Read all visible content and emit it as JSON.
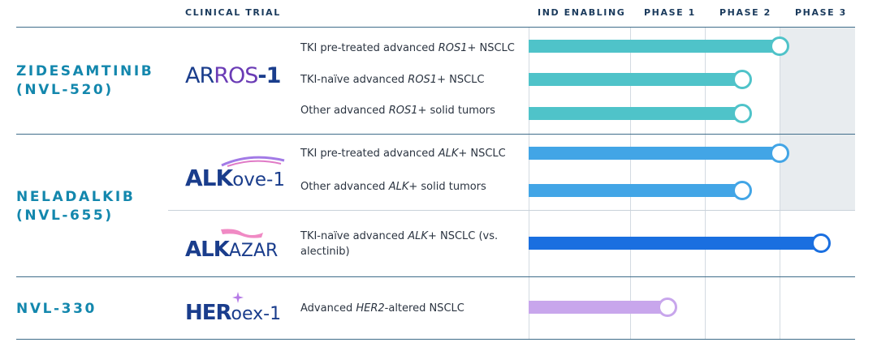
{
  "header": {
    "clinical_trial": "CLINICAL TRIAL",
    "phases": [
      "IND ENABLING",
      "PHASE 1",
      "PHASE 2",
      "PHASE 3"
    ]
  },
  "drugs": [
    {
      "name": "ZIDESAMTINIB",
      "code": "(NVL-520)"
    },
    {
      "name": "NELADALKIB",
      "code": "(NVL-655)"
    },
    {
      "name": "NVL-330",
      "code": ""
    }
  ],
  "trials": {
    "arros": {
      "prefix": "AR",
      "mid": "ROS",
      "suffix": "-1"
    },
    "alkove": {
      "main": "ALK",
      "rest": "ove-1"
    },
    "alkazar": {
      "main": "ALK",
      "rest": "AZAR"
    },
    "heroex": {
      "main": "HER",
      "rest": "oex-1"
    }
  },
  "indications": [
    {
      "pre": "TKI pre-treated advanced ",
      "em": "ROS1+",
      "post": " NSCLC"
    },
    {
      "pre": "TKI-naïve advanced ",
      "em": "ROS1+",
      "post": " NSCLC"
    },
    {
      "pre": "Other advanced ",
      "em": "ROS1+",
      "post": " solid tumors"
    },
    {
      "pre": "TKI pre-treated advanced ",
      "em": "ALK+",
      "post": " NSCLC"
    },
    {
      "pre": "Other advanced ",
      "em": "ALK+",
      "post": " solid tumors"
    },
    {
      "pre": "TKI-naïve advanced ",
      "em": "ALK+",
      "post": " NSCLC (vs.",
      "line2": "alectinib)"
    },
    {
      "pre": "Advanced ",
      "em": "HER2",
      "post": "-altered NSCLC"
    }
  ],
  "chart_data": {
    "type": "bar",
    "orientation": "horizontal",
    "categories": [
      "TKI pre-treated advanced ROS1+ NSCLC",
      "TKI-naïve advanced ROS1+ NSCLC",
      "Other advanced ROS1+ solid tumors",
      "TKI pre-treated advanced ALK+ NSCLC",
      "Other advanced ALK+ solid tumors",
      "TKI-naïve advanced ALK+ NSCLC (vs. alectinib)",
      "Advanced HER2-altered NSCLC"
    ],
    "phase_axis": [
      "IND ENABLING",
      "PHASE 1",
      "PHASE 2",
      "PHASE 3"
    ],
    "values": [
      3.0,
      2.5,
      2.5,
      3.0,
      2.5,
      3.55,
      1.5
    ],
    "xlim": [
      0,
      4
    ],
    "colors": [
      "#4fc3c9",
      "#4fc3c9",
      "#4fc3c9",
      "#42a5e6",
      "#42a5e6",
      "#1a6fe0",
      "#c8a6ec"
    ],
    "shaded_rows": [
      0,
      1,
      2,
      3,
      4
    ],
    "shaded_phase": "PHASE 3"
  }
}
